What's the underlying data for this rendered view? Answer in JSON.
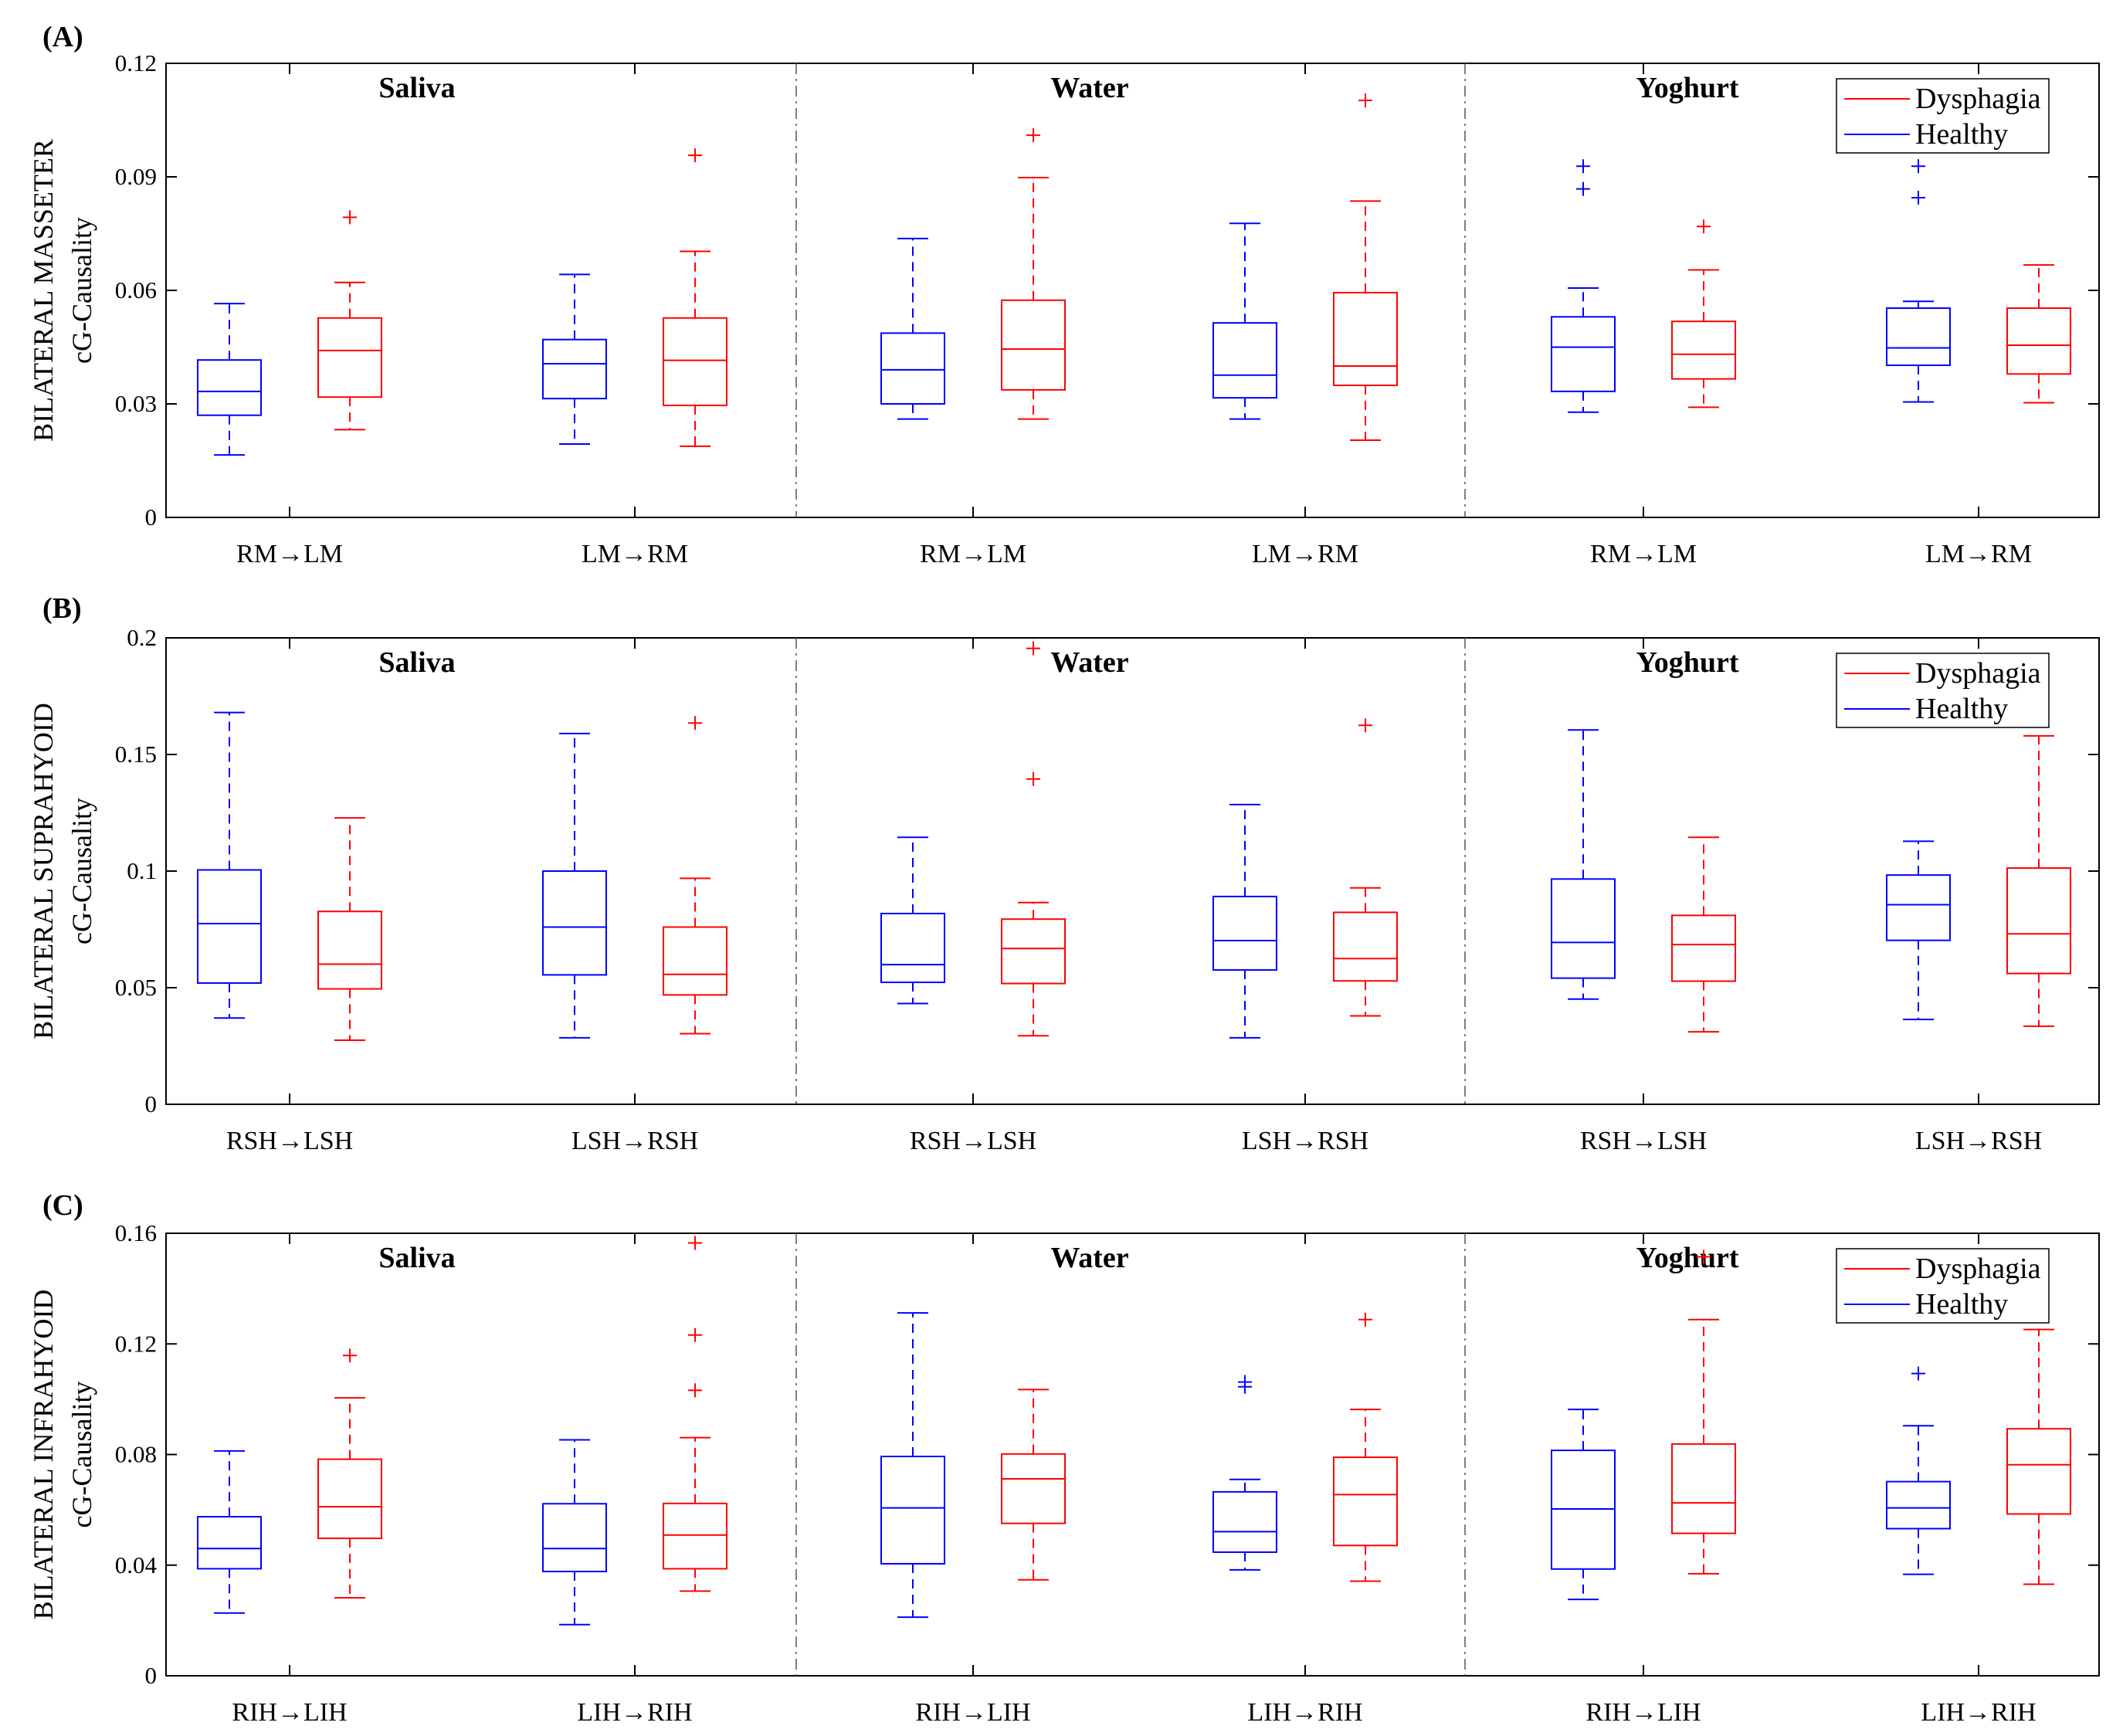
{
  "colors": {
    "dysphagia": "#ff0000",
    "healthy": "#0000ff",
    "axis": "#000000",
    "divider": "#555555"
  },
  "legend": {
    "dysphagia": "Dysphagia",
    "healthy": "Healthy",
    "placement": "top-right"
  },
  "chart_data": [
    {
      "type": "box",
      "panel": "(A)",
      "ylabel": "BILATERAL MASSETER",
      "ylabel2": "cG-Causality",
      "ylim": [
        0,
        0.12
      ],
      "yticks": [
        0,
        0.03,
        0.06,
        0.09,
        0.12
      ],
      "ytick_labels": [
        "0",
        "0.03",
        "0.06",
        "0.09",
        "0.12"
      ],
      "sections": [
        "Saliva",
        "Water",
        "Yoghurt"
      ],
      "categories": [
        "RM→LM",
        "LM→RM",
        "RM→LM",
        "LM→RM",
        "RM→LM",
        "LM→RM"
      ],
      "series": [
        {
          "name": "Healthy",
          "boxes": [
            {
              "whisker_low": 0.0165,
              "q1": 0.027,
              "median": 0.0333,
              "q3": 0.0416,
              "whisker_high": 0.0565,
              "outliers": []
            },
            {
              "whisker_low": 0.0194,
              "q1": 0.0314,
              "median": 0.0406,
              "q3": 0.047,
              "whisker_high": 0.0642,
              "outliers": []
            },
            {
              "whisker_low": 0.026,
              "q1": 0.03,
              "median": 0.039,
              "q3": 0.0487,
              "whisker_high": 0.0737,
              "outliers": []
            },
            {
              "whisker_low": 0.026,
              "q1": 0.0316,
              "median": 0.0376,
              "q3": 0.0514,
              "whisker_high": 0.0777,
              "outliers": []
            },
            {
              "whisker_low": 0.0278,
              "q1": 0.0333,
              "median": 0.045,
              "q3": 0.053,
              "whisker_high": 0.0606,
              "outliers": [
                0.0868,
                0.0928
              ]
            },
            {
              "whisker_low": 0.0305,
              "q1": 0.0402,
              "median": 0.0448,
              "q3": 0.0553,
              "whisker_high": 0.0571,
              "outliers": [
                0.0845,
                0.0928
              ]
            }
          ]
        },
        {
          "name": "Dysphagia",
          "boxes": [
            {
              "whisker_low": 0.0232,
              "q1": 0.0318,
              "median": 0.0441,
              "q3": 0.0527,
              "whisker_high": 0.0621,
              "outliers": [
                0.0793
              ]
            },
            {
              "whisker_low": 0.0188,
              "q1": 0.0296,
              "median": 0.0415,
              "q3": 0.0527,
              "whisker_high": 0.0703,
              "outliers": [
                0.0957
              ]
            },
            {
              "whisker_low": 0.026,
              "q1": 0.0337,
              "median": 0.0445,
              "q3": 0.0574,
              "whisker_high": 0.0898,
              "outliers": [
                0.101
              ]
            },
            {
              "whisker_low": 0.0204,
              "q1": 0.0349,
              "median": 0.04,
              "q3": 0.0594,
              "whisker_high": 0.0836,
              "outliers": [
                0.1102
              ]
            },
            {
              "whisker_low": 0.0291,
              "q1": 0.0366,
              "median": 0.0431,
              "q3": 0.0518,
              "whisker_high": 0.0654,
              "outliers": [
                0.0769
              ]
            },
            {
              "whisker_low": 0.0303,
              "q1": 0.0379,
              "median": 0.0455,
              "q3": 0.0553,
              "whisker_high": 0.0667,
              "outliers": []
            }
          ]
        }
      ]
    },
    {
      "type": "box",
      "panel": "(B)",
      "ylabel": "BILATERAL SUPRAHYOID",
      "ylabel2": "cG-Causality",
      "ylim": [
        0,
        0.2
      ],
      "yticks": [
        0,
        0.05,
        0.1,
        0.15,
        0.2
      ],
      "ytick_labels": [
        "0",
        "0.05",
        "0.1",
        "0.15",
        "0.2"
      ],
      "sections": [
        "Saliva",
        "Water",
        "Yoghurt"
      ],
      "categories": [
        "RSH→LSH",
        "LSH→RSH",
        "RSH→LSH",
        "LSH→RSH",
        "RSH→LSH",
        "LSH→RSH"
      ],
      "series": [
        {
          "name": "Healthy",
          "boxes": [
            {
              "whisker_low": 0.037,
              "q1": 0.052,
              "median": 0.0775,
              "q3": 0.1005,
              "whisker_high": 0.168,
              "outliers": []
            },
            {
              "whisker_low": 0.0285,
              "q1": 0.0555,
              "median": 0.076,
              "q3": 0.1,
              "whisker_high": 0.159,
              "outliers": []
            },
            {
              "whisker_low": 0.0432,
              "q1": 0.0523,
              "median": 0.0599,
              "q3": 0.0818,
              "whisker_high": 0.1145,
              "outliers": []
            },
            {
              "whisker_low": 0.0285,
              "q1": 0.0576,
              "median": 0.0702,
              "q3": 0.0891,
              "whisker_high": 0.1285,
              "outliers": []
            },
            {
              "whisker_low": 0.0451,
              "q1": 0.0541,
              "median": 0.0694,
              "q3": 0.0966,
              "whisker_high": 0.1605,
              "outliers": []
            },
            {
              "whisker_low": 0.0364,
              "q1": 0.0703,
              "median": 0.0856,
              "q3": 0.0983,
              "whisker_high": 0.1128,
              "outliers": []
            }
          ]
        },
        {
          "name": "Dysphagia",
          "boxes": [
            {
              "whisker_low": 0.0275,
              "q1": 0.0495,
              "median": 0.0601,
              "q3": 0.0827,
              "whisker_high": 0.1228,
              "outliers": []
            },
            {
              "whisker_low": 0.0303,
              "q1": 0.0469,
              "median": 0.0557,
              "q3": 0.076,
              "whisker_high": 0.0969,
              "outliers": [
                0.1635
              ]
            },
            {
              "whisker_low": 0.0294,
              "q1": 0.0518,
              "median": 0.0668,
              "q3": 0.0794,
              "whisker_high": 0.0865,
              "outliers": [
                0.1395,
                0.1955
              ]
            },
            {
              "whisker_low": 0.0379,
              "q1": 0.0529,
              "median": 0.0625,
              "q3": 0.0823,
              "whisker_high": 0.0928,
              "outliers": [
                0.1625
              ]
            },
            {
              "whisker_low": 0.0311,
              "q1": 0.0528,
              "median": 0.0685,
              "q3": 0.081,
              "whisker_high": 0.1145,
              "outliers": []
            },
            {
              "whisker_low": 0.0335,
              "q1": 0.0561,
              "median": 0.0731,
              "q3": 0.1013,
              "whisker_high": 0.158,
              "outliers": []
            }
          ]
        }
      ]
    },
    {
      "type": "box",
      "panel": "(C)",
      "ylabel": "BILATERAL INFRAHYOID",
      "ylabel2": "cG-Causality",
      "ylim": [
        0,
        0.16
      ],
      "yticks": [
        0,
        0.04,
        0.08,
        0.12,
        0.16
      ],
      "ytick_labels": [
        "0",
        "0.04",
        "0.08",
        "0.12",
        "0.16"
      ],
      "sections": [
        "Saliva",
        "Water",
        "Yoghurt"
      ],
      "categories": [
        "RIH→LIH",
        "LIH→RIH",
        "RIH→LIH",
        "LIH→RIH",
        "RIH→LIH",
        "LIH→RIH"
      ],
      "series": [
        {
          "name": "Healthy",
          "boxes": [
            {
              "whisker_low": 0.0227,
              "q1": 0.0387,
              "median": 0.046,
              "q3": 0.0575,
              "whisker_high": 0.0813,
              "outliers": []
            },
            {
              "whisker_low": 0.0185,
              "q1": 0.0377,
              "median": 0.046,
              "q3": 0.0622,
              "whisker_high": 0.0853,
              "outliers": []
            },
            {
              "whisker_low": 0.0212,
              "q1": 0.0405,
              "median": 0.0607,
              "q3": 0.0793,
              "whisker_high": 0.1312,
              "outliers": []
            },
            {
              "whisker_low": 0.0383,
              "q1": 0.0447,
              "median": 0.0521,
              "q3": 0.0665,
              "whisker_high": 0.071,
              "outliers": [
                0.1045,
                0.1062
              ]
            },
            {
              "whisker_low": 0.0276,
              "q1": 0.0386,
              "median": 0.0603,
              "q3": 0.0815,
              "whisker_high": 0.0963,
              "outliers": []
            },
            {
              "whisker_low": 0.0367,
              "q1": 0.0532,
              "median": 0.0607,
              "q3": 0.0702,
              "whisker_high": 0.0904,
              "outliers": [
                0.1093
              ]
            }
          ]
        },
        {
          "name": "Dysphagia",
          "boxes": [
            {
              "whisker_low": 0.0282,
              "q1": 0.0497,
              "median": 0.0611,
              "q3": 0.0783,
              "whisker_high": 0.1005,
              "outliers": [
                0.1158
              ]
            },
            {
              "whisker_low": 0.0306,
              "q1": 0.0387,
              "median": 0.0509,
              "q3": 0.0623,
              "whisker_high": 0.0861,
              "outliers": [
                0.1032,
                0.1232,
                0.1565
              ]
            },
            {
              "whisker_low": 0.0347,
              "q1": 0.0551,
              "median": 0.0712,
              "q3": 0.0802,
              "whisker_high": 0.1035,
              "outliers": []
            },
            {
              "whisker_low": 0.0342,
              "q1": 0.0471,
              "median": 0.0655,
              "q3": 0.079,
              "whisker_high": 0.0963,
              "outliers": [
                0.1288
              ]
            },
            {
              "whisker_low": 0.0369,
              "q1": 0.0515,
              "median": 0.0625,
              "q3": 0.0838,
              "whisker_high": 0.1288,
              "outliers": [
                0.1515
              ]
            },
            {
              "whisker_low": 0.0331,
              "q1": 0.0585,
              "median": 0.0763,
              "q3": 0.0893,
              "whisker_high": 0.1252,
              "outliers": []
            }
          ]
        }
      ]
    }
  ]
}
